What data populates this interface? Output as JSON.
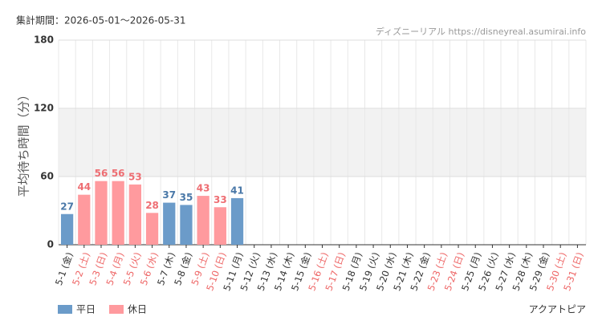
{
  "chart_data": {
    "type": "bar",
    "subtitle": "集計期間：2026-05-01～2026-05-31",
    "source": "ディズニーリアル https://disneyreal.asumirai.info",
    "attraction": "アクアトピア",
    "ylabel": "平均待ち時間（分）",
    "categories": [
      "5-1 (金)",
      "5-2 (土)",
      "5-3 (日)",
      "5-4 (月)",
      "5-5 (火)",
      "5-6 (水)",
      "5-7 (木)",
      "5-8 (金)",
      "5-9 (土)",
      "5-10 (日)",
      "5-11 (月)",
      "5-12 (火)",
      "5-13 (水)",
      "5-14 (木)",
      "5-15 (金)",
      "5-16 (土)",
      "5-17 (日)",
      "5-18 (月)",
      "5-19 (火)",
      "5-20 (水)",
      "5-21 (木)",
      "5-22 (金)",
      "5-23 (土)",
      "5-24 (日)",
      "5-25 (月)",
      "5-26 (火)",
      "5-27 (水)",
      "5-28 (木)",
      "5-29 (金)",
      "5-30 (土)",
      "5-31 (日)"
    ],
    "category_colors": [
      "#333",
      "#e66",
      "#e66",
      "#e66",
      "#e66",
      "#e66",
      "#333",
      "#333",
      "#e66",
      "#e66",
      "#333",
      "#333",
      "#333",
      "#333",
      "#333",
      "#e66",
      "#e66",
      "#333",
      "#333",
      "#333",
      "#333",
      "#333",
      "#e66",
      "#e66",
      "#333",
      "#333",
      "#333",
      "#333",
      "#333",
      "#e66",
      "#e66"
    ],
    "series": [
      {
        "name": "平日",
        "color": "#6b9bc9",
        "label_color": "#4a78a8",
        "values": [
          27,
          null,
          null,
          null,
          null,
          null,
          37,
          35,
          null,
          null,
          41,
          null,
          null,
          null,
          null,
          null,
          null,
          null,
          null,
          null,
          null,
          null,
          null,
          null,
          null,
          null,
          null,
          null,
          null,
          null,
          null
        ]
      },
      {
        "name": "休日",
        "color": "#ff9a9e",
        "label_color": "#ee6e73",
        "values": [
          null,
          44,
          56,
          56,
          53,
          28,
          null,
          null,
          43,
          33,
          null,
          null,
          null,
          null,
          null,
          null,
          null,
          null,
          null,
          null,
          null,
          null,
          null,
          null,
          null,
          null,
          null,
          null,
          null,
          null,
          null
        ]
      }
    ],
    "ylim": [
      0,
      180
    ],
    "yticks": [
      0,
      60,
      120,
      180
    ],
    "band": [
      60,
      120
    ],
    "grid": true
  }
}
